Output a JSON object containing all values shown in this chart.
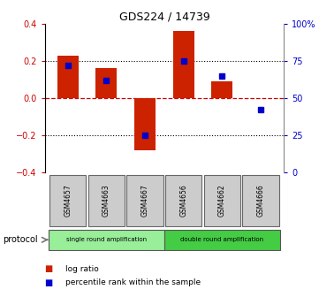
{
  "title": "GDS224 / 14739",
  "samples": [
    "GSM4657",
    "GSM4663",
    "GSM4667",
    "GSM4656",
    "GSM4662",
    "GSM4666"
  ],
  "log_ratios": [
    0.23,
    0.16,
    -0.28,
    0.36,
    0.09,
    0.0
  ],
  "percentile_ranks": [
    72,
    62,
    25,
    75,
    65,
    42
  ],
  "groups": [
    {
      "label": "single round amplification",
      "indices": [
        0,
        1,
        2
      ],
      "color": "#99ee99"
    },
    {
      "label": "double round amplification",
      "indices": [
        3,
        4,
        5
      ],
      "color": "#44cc44"
    }
  ],
  "bar_color": "#cc2200",
  "dot_color": "#0000cc",
  "ylim_left": [
    -0.4,
    0.4
  ],
  "ylim_right": [
    0,
    100
  ],
  "yticks_left": [
    -0.4,
    -0.2,
    0.0,
    0.2,
    0.4
  ],
  "yticks_right": [
    0,
    25,
    50,
    75,
    100
  ],
  "ytick_labels_right": [
    "0",
    "25",
    "50",
    "75",
    "100%"
  ],
  "dashed_zero_color": "#cc0000",
  "dotted_line_color": "#000000",
  "bar_width": 0.55,
  "dot_size": 5,
  "protocol_label": "protocol",
  "legend_items": [
    {
      "color": "#cc2200",
      "label": "log ratio"
    },
    {
      "color": "#0000cc",
      "label": "percentile rank within the sample"
    }
  ]
}
